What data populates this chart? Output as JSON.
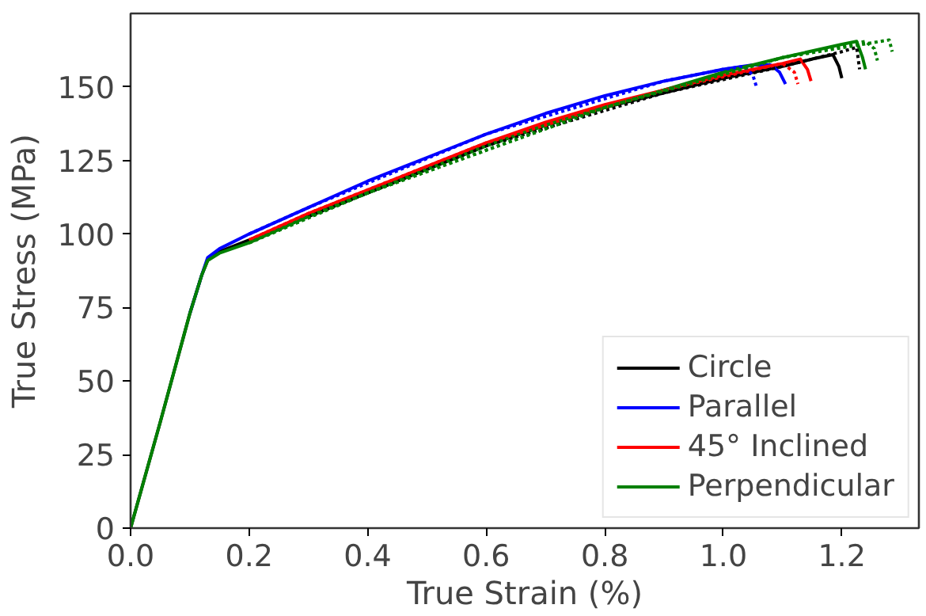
{
  "chart_data": {
    "type": "line",
    "xlabel": "True Strain (%)",
    "ylabel": "True Stress (MPa)",
    "xlim": [
      0,
      1.33
    ],
    "ylim": [
      0,
      175
    ],
    "xticks": [
      {
        "value": 0,
        "label": "0.0"
      },
      {
        "value": 0.2,
        "label": "0.2"
      },
      {
        "value": 0.4,
        "label": "0.4"
      },
      {
        "value": 0.6,
        "label": "0.6"
      },
      {
        "value": 0.8,
        "label": "0.8"
      },
      {
        "value": 1.0,
        "label": "1.0"
      },
      {
        "value": 1.2,
        "label": "1.2"
      }
    ],
    "yticks": [
      0,
      25,
      50,
      75,
      100,
      125,
      150
    ],
    "grid": false,
    "legend": "bottom right",
    "marker": "none",
    "series": [
      {
        "name": "Circle",
        "color": "#000000",
        "line_style": "solid",
        "x": [
          0,
          0.05,
          0.1,
          0.12,
          0.13,
          0.15,
          0.2,
          0.3,
          0.4,
          0.5,
          0.6,
          0.7,
          0.8,
          0.9,
          1.0,
          1.1,
          1.15,
          1.185,
          1.195,
          1.2
        ],
        "values": [
          0,
          36,
          73,
          86,
          91,
          94,
          98,
          106,
          114,
          122,
          130,
          137,
          143,
          148,
          153,
          157,
          159.5,
          161,
          157,
          153
        ]
      },
      {
        "name": "Parallel",
        "color": "#0000ff",
        "line_style": "solid",
        "x": [
          0.1,
          0.12,
          0.13,
          0.15,
          0.2,
          0.3,
          0.4,
          0.5,
          0.6,
          0.7,
          0.8,
          0.9,
          1.0,
          1.05,
          1.08,
          1.095,
          1.105
        ],
        "values": [
          73,
          86,
          92,
          95,
          100,
          109,
          118,
          126,
          134,
          141,
          147,
          152,
          156,
          157.5,
          157.5,
          155,
          151
        ]
      },
      {
        "name": "45° Inclined",
        "color": "#ff0000",
        "line_style": "solid",
        "x": [
          0.2,
          0.3,
          0.4,
          0.5,
          0.6,
          0.7,
          0.8,
          0.9,
          1.0,
          1.1,
          1.13,
          1.142,
          1.148
        ],
        "values": [
          98,
          107,
          115,
          123,
          131,
          138,
          144,
          149,
          154,
          158,
          159.5,
          156,
          152
        ]
      },
      {
        "name": "Perpendicular",
        "color": "#008000",
        "line_style": "solid",
        "x": [
          0,
          0.05,
          0.1,
          0.12,
          0.13,
          0.15,
          0.2,
          0.3,
          0.4,
          0.5,
          0.6,
          0.7,
          0.8,
          0.9,
          1.0,
          1.1,
          1.2,
          1.225,
          1.235,
          1.24
        ],
        "values": [
          0,
          36,
          73,
          86,
          91,
          93.5,
          97,
          106,
          114,
          122,
          130,
          137,
          143,
          149,
          155,
          160,
          164.5,
          165.5,
          160,
          156
        ]
      },
      {
        "color": "#000000",
        "line_style": "dotted",
        "x": [
          0.3,
          0.6,
          0.9,
          1.1,
          1.2,
          1.225,
          1.23
        ],
        "values": [
          106,
          130,
          148,
          157,
          162,
          163.5,
          156
        ]
      },
      {
        "color": "#0000ff",
        "line_style": "dotted",
        "x": [
          0.2,
          0.3,
          0.6,
          0.9,
          1.0,
          1.035,
          1.05,
          1.056
        ],
        "values": [
          100,
          109,
          134,
          152,
          156,
          157,
          154,
          150
        ]
      },
      {
        "color": "#ff0000",
        "line_style": "dotted",
        "x": [
          0.2,
          0.3,
          0.6,
          0.9,
          1.1,
          1.12,
          1.126
        ],
        "values": [
          98,
          107,
          131,
          149,
          158,
          155,
          151
        ]
      },
      {
        "color": "#008000",
        "line_style": "dotted",
        "x": [
          0.2,
          0.4,
          0.8,
          1.1,
          1.24,
          1.255,
          1.26
        ],
        "values": [
          97,
          114,
          143,
          160,
          165.5,
          163,
          159
        ]
      },
      {
        "color": "#008000",
        "line_style": "dotted",
        "x": [
          0.2,
          0.4,
          0.8,
          1.1,
          1.25,
          1.28,
          1.285
        ],
        "values": [
          97,
          114,
          143,
          160,
          165,
          166,
          162
        ]
      }
    ]
  }
}
